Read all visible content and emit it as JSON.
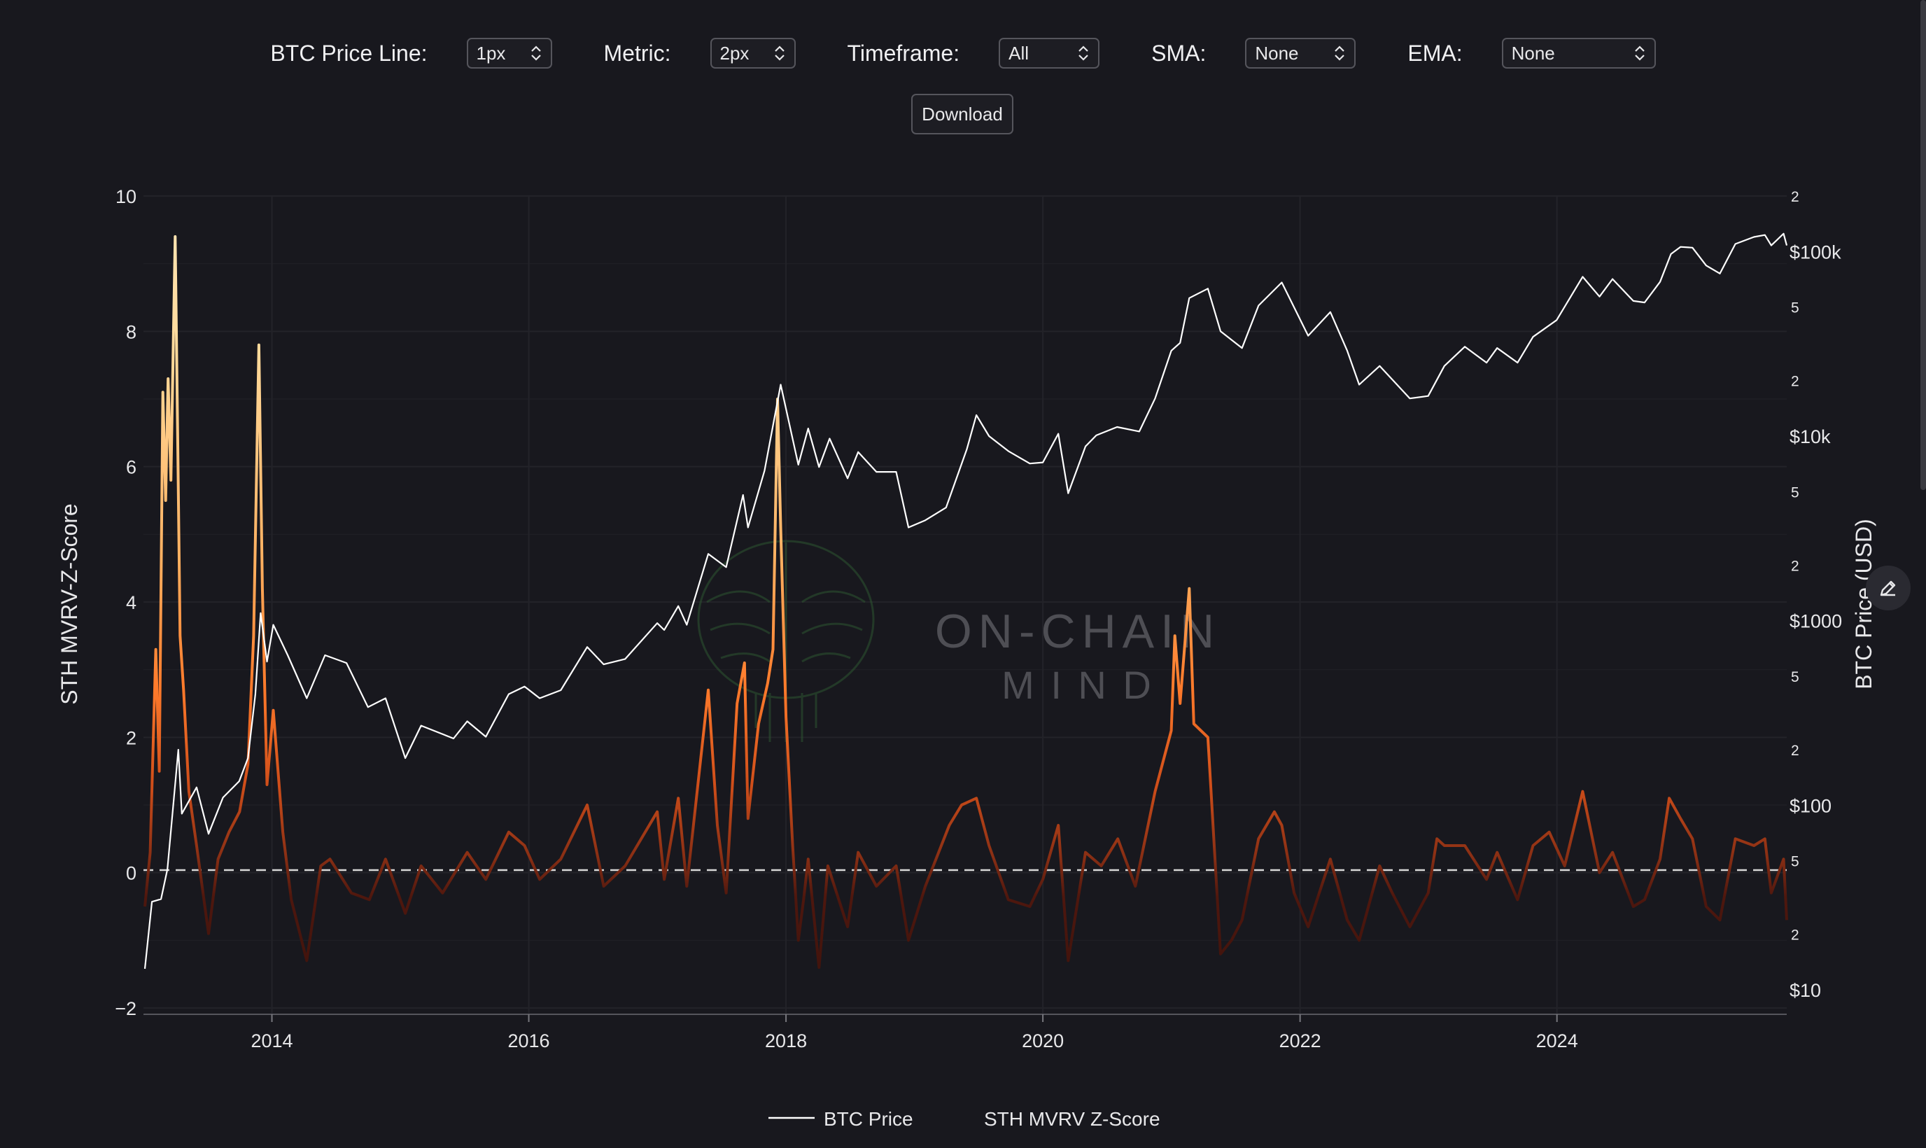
{
  "controls": [
    {
      "label": "BTC Price Line:",
      "value": "1px"
    },
    {
      "label": "Metric:",
      "value": "2px"
    },
    {
      "label": "Timeframe:",
      "value": "All"
    },
    {
      "label": "SMA:",
      "value": "None"
    },
    {
      "label": "EMA:",
      "value": "None"
    }
  ],
  "download_label": "Download",
  "watermark": {
    "line1": "ON-CHAIN",
    "line2": "M I N D"
  },
  "colors": {
    "background": "#18181e",
    "price": "#ffffff",
    "zscore_low": "#5a1a10",
    "zscore_mid": "#ff7a2a",
    "zscore_high": "#ffd28a",
    "zero_line": "#d8d8d8"
  },
  "icons": {
    "select": "chevron-updown-icon",
    "edit": "pencil-icon"
  },
  "chart_data": {
    "type": "line",
    "ylabel": "STH MVRV-Z-Score",
    "y2label": "BTC Price (USD)",
    "ylim": [
      -2,
      10
    ],
    "y2lim": [
      10,
      200000
    ],
    "y2_scale": "log",
    "y_ticks": [
      "10",
      "8",
      "6",
      "4",
      "2",
      "0",
      "−2"
    ],
    "y2_major_ticks": [
      {
        "value": 100000,
        "label": "$100k"
      },
      {
        "value": 10000,
        "label": "$10k"
      },
      {
        "value": 1000,
        "label": "$1000"
      },
      {
        "value": 100,
        "label": "$100"
      },
      {
        "value": 10,
        "label": "$10"
      }
    ],
    "y2_minor_ticks": [
      {
        "value": 200000,
        "label": "2"
      },
      {
        "value": 50000,
        "label": "5"
      },
      {
        "value": 20000,
        "label": "2"
      },
      {
        "value": 5000,
        "label": "5"
      },
      {
        "value": 2000,
        "label": "2"
      },
      {
        "value": 500,
        "label": "5"
      },
      {
        "value": 200,
        "label": "2"
      },
      {
        "value": 50,
        "label": "5"
      },
      {
        "value": 20,
        "label": "2"
      }
    ],
    "x_ticks": [
      "2014",
      "2016",
      "2018",
      "2020",
      "2022",
      "2024"
    ],
    "xlim": [
      "2013-01-01",
      "2025-10-15"
    ],
    "grid": true,
    "zero_reference_line": "dashed",
    "legend_position": "bottom-center",
    "series": [
      {
        "name": "BTC Price",
        "axis": "right",
        "points": [
          [
            "2013-01-05",
            13
          ],
          [
            "2013-01-25",
            30
          ],
          [
            "2013-02-20",
            31
          ],
          [
            "2013-03-10",
            45
          ],
          [
            "2013-04-10",
            200
          ],
          [
            "2013-04-20",
            90
          ],
          [
            "2013-06-01",
            125
          ],
          [
            "2013-07-05",
            70
          ],
          [
            "2013-08-15",
            110
          ],
          [
            "2013-09-30",
            135
          ],
          [
            "2013-10-25",
            180
          ],
          [
            "2013-11-15",
            400
          ],
          [
            "2013-11-30",
            1100
          ],
          [
            "2013-12-18",
            600
          ],
          [
            "2014-01-05",
            950
          ],
          [
            "2014-02-15",
            650
          ],
          [
            "2014-04-10",
            380
          ],
          [
            "2014-06-01",
            650
          ],
          [
            "2014-08-01",
            590
          ],
          [
            "2014-10-01",
            340
          ],
          [
            "2014-11-20",
            380
          ],
          [
            "2015-01-15",
            180
          ],
          [
            "2015-03-01",
            270
          ],
          [
            "2015-06-01",
            230
          ],
          [
            "2015-07-10",
            285
          ],
          [
            "2015-09-01",
            235
          ],
          [
            "2015-11-05",
            400
          ],
          [
            "2015-12-20",
            440
          ],
          [
            "2016-02-01",
            380
          ],
          [
            "2016-04-01",
            420
          ],
          [
            "2016-06-15",
            720
          ],
          [
            "2016-08-01",
            580
          ],
          [
            "2016-10-01",
            620
          ],
          [
            "2016-12-31",
            970
          ],
          [
            "2017-01-20",
            890
          ],
          [
            "2017-03-01",
            1200
          ],
          [
            "2017-03-25",
            950
          ],
          [
            "2017-05-25",
            2300
          ],
          [
            "2017-07-15",
            1950
          ],
          [
            "2017-09-01",
            4800
          ],
          [
            "2017-09-15",
            3200
          ],
          [
            "2017-11-01",
            6500
          ],
          [
            "2017-12-17",
            19000
          ],
          [
            "2018-02-05",
            7000
          ],
          [
            "2018-03-05",
            11000
          ],
          [
            "2018-04-05",
            6800
          ],
          [
            "2018-05-05",
            9700
          ],
          [
            "2018-06-25",
            5900
          ],
          [
            "2018-07-25",
            8200
          ],
          [
            "2018-09-15",
            6400
          ],
          [
            "2018-11-10",
            6400
          ],
          [
            "2018-12-15",
            3200
          ],
          [
            "2019-02-01",
            3500
          ],
          [
            "2019-04-01",
            4100
          ],
          [
            "2019-05-30",
            8500
          ],
          [
            "2019-06-26",
            13000
          ],
          [
            "2019-08-01",
            10000
          ],
          [
            "2019-09-25",
            8300
          ],
          [
            "2019-11-25",
            7100
          ],
          [
            "2020-01-01",
            7200
          ],
          [
            "2020-02-14",
            10300
          ],
          [
            "2020-03-13",
            4900
          ],
          [
            "2020-05-01",
            8800
          ],
          [
            "2020-06-01",
            10100
          ],
          [
            "2020-07-30",
            11200
          ],
          [
            "2020-10-01",
            10600
          ],
          [
            "2020-11-15",
            16000
          ],
          [
            "2020-12-31",
            29000
          ],
          [
            "2021-01-25",
            32000
          ],
          [
            "2021-02-20",
            56000
          ],
          [
            "2021-04-14",
            63000
          ],
          [
            "2021-05-20",
            37000
          ],
          [
            "2021-07-20",
            30000
          ],
          [
            "2021-09-05",
            51000
          ],
          [
            "2021-11-10",
            68000
          ],
          [
            "2022-01-24",
            35000
          ],
          [
            "2022-03-28",
            47000
          ],
          [
            "2022-05-15",
            29000
          ],
          [
            "2022-06-18",
            19000
          ],
          [
            "2022-08-15",
            24000
          ],
          [
            "2022-11-09",
            16000
          ],
          [
            "2022-12-31",
            16500
          ],
          [
            "2023-02-15",
            24000
          ],
          [
            "2023-04-14",
            30500
          ],
          [
            "2023-06-15",
            25000
          ],
          [
            "2023-07-15",
            30000
          ],
          [
            "2023-09-11",
            25000
          ],
          [
            "2023-10-25",
            34500
          ],
          [
            "2023-12-31",
            42500
          ],
          [
            "2024-03-14",
            73000
          ],
          [
            "2024-05-01",
            57000
          ],
          [
            "2024-06-07",
            71000
          ],
          [
            "2024-08-05",
            54000
          ],
          [
            "2024-09-06",
            53000
          ],
          [
            "2024-10-20",
            68500
          ],
          [
            "2024-11-20",
            97000
          ],
          [
            "2024-12-17",
            106000
          ],
          [
            "2025-01-20",
            105000
          ],
          [
            "2025-02-28",
            84000
          ],
          [
            "2025-04-08",
            76000
          ],
          [
            "2025-05-22",
            110000
          ],
          [
            "2025-07-14",
            120000
          ],
          [
            "2025-08-14",
            123000
          ],
          [
            "2025-09-01",
            108000
          ],
          [
            "2025-10-06",
            125000
          ],
          [
            "2025-10-15",
            108000
          ]
        ]
      },
      {
        "name": "STH MVRV Z-Score",
        "axis": "left",
        "points": [
          [
            "2013-01-05",
            -0.5
          ],
          [
            "2013-01-20",
            0.3
          ],
          [
            "2013-02-05",
            3.3
          ],
          [
            "2013-02-15",
            1.5
          ],
          [
            "2013-02-25",
            7.1
          ],
          [
            "2013-03-05",
            5.5
          ],
          [
            "2013-03-12",
            7.3
          ],
          [
            "2013-03-20",
            5.8
          ],
          [
            "2013-04-01",
            9.4
          ],
          [
            "2013-04-08",
            6.5
          ],
          [
            "2013-04-15",
            3.5
          ],
          [
            "2013-04-25",
            2.7
          ],
          [
            "2013-05-10",
            1.2
          ],
          [
            "2013-06-01",
            0.4
          ],
          [
            "2013-07-05",
            -0.9
          ],
          [
            "2013-08-01",
            0.2
          ],
          [
            "2013-09-01",
            0.6
          ],
          [
            "2013-10-01",
            0.9
          ],
          [
            "2013-10-25",
            1.6
          ],
          [
            "2013-11-10",
            3.5
          ],
          [
            "2013-11-25",
            7.8
          ],
          [
            "2013-12-05",
            4.2
          ],
          [
            "2013-12-18",
            1.3
          ],
          [
            "2014-01-05",
            2.4
          ],
          [
            "2014-02-01",
            0.6
          ],
          [
            "2014-02-25",
            -0.4
          ],
          [
            "2014-04-10",
            -1.3
          ],
          [
            "2014-05-20",
            0.1
          ],
          [
            "2014-06-15",
            0.2
          ],
          [
            "2014-08-15",
            -0.3
          ],
          [
            "2014-10-05",
            -0.4
          ],
          [
            "2014-11-20",
            0.2
          ],
          [
            "2015-01-15",
            -0.6
          ],
          [
            "2015-03-01",
            0.1
          ],
          [
            "2015-05-01",
            -0.3
          ],
          [
            "2015-07-10",
            0.3
          ],
          [
            "2015-09-01",
            -0.1
          ],
          [
            "2015-11-05",
            0.6
          ],
          [
            "2015-12-20",
            0.4
          ],
          [
            "2016-02-01",
            -0.1
          ],
          [
            "2016-04-01",
            0.2
          ],
          [
            "2016-06-15",
            1.0
          ],
          [
            "2016-08-01",
            -0.2
          ],
          [
            "2016-10-01",
            0.1
          ],
          [
            "2016-12-31",
            0.9
          ],
          [
            "2017-01-20",
            -0.1
          ],
          [
            "2017-03-01",
            1.1
          ],
          [
            "2017-03-25",
            -0.2
          ],
          [
            "2017-05-25",
            2.7
          ],
          [
            "2017-06-20",
            0.7
          ],
          [
            "2017-07-15",
            -0.3
          ],
          [
            "2017-08-15",
            2.5
          ],
          [
            "2017-09-05",
            3.1
          ],
          [
            "2017-09-15",
            0.8
          ],
          [
            "2017-10-15",
            2.2
          ],
          [
            "2017-11-10",
            2.8
          ],
          [
            "2017-11-25",
            3.3
          ],
          [
            "2017-12-08",
            7.0
          ],
          [
            "2017-12-17",
            5.1
          ],
          [
            "2018-01-01",
            2.3
          ],
          [
            "2018-01-20",
            0.4
          ],
          [
            "2018-02-05",
            -1.0
          ],
          [
            "2018-02-20",
            -0.4
          ],
          [
            "2018-03-05",
            0.2
          ],
          [
            "2018-04-05",
            -1.4
          ],
          [
            "2018-04-30",
            0.1
          ],
          [
            "2018-06-25",
            -0.8
          ],
          [
            "2018-07-25",
            0.3
          ],
          [
            "2018-09-15",
            -0.2
          ],
          [
            "2018-11-10",
            0.1
          ],
          [
            "2018-12-15",
            -1.0
          ],
          [
            "2019-02-01",
            -0.2
          ],
          [
            "2019-04-10",
            0.7
          ],
          [
            "2019-05-15",
            1.0
          ],
          [
            "2019-06-26",
            1.1
          ],
          [
            "2019-08-01",
            0.4
          ],
          [
            "2019-09-25",
            -0.4
          ],
          [
            "2019-11-25",
            -0.5
          ],
          [
            "2020-01-01",
            -0.1
          ],
          [
            "2020-02-14",
            0.7
          ],
          [
            "2020-03-13",
            -1.3
          ],
          [
            "2020-05-01",
            0.3
          ],
          [
            "2020-06-15",
            0.1
          ],
          [
            "2020-08-01",
            0.5
          ],
          [
            "2020-09-20",
            -0.2
          ],
          [
            "2020-11-15",
            1.2
          ],
          [
            "2020-12-31",
            2.1
          ],
          [
            "2021-01-10",
            3.5
          ],
          [
            "2021-01-25",
            2.5
          ],
          [
            "2021-02-20",
            4.2
          ],
          [
            "2021-03-05",
            2.2
          ],
          [
            "2021-04-14",
            2.0
          ],
          [
            "2021-05-20",
            -1.2
          ],
          [
            "2021-06-20",
            -1.0
          ],
          [
            "2021-07-20",
            -0.7
          ],
          [
            "2021-09-05",
            0.5
          ],
          [
            "2021-10-20",
            0.9
          ],
          [
            "2021-11-10",
            0.7
          ],
          [
            "2021-12-15",
            -0.3
          ],
          [
            "2022-01-24",
            -0.8
          ],
          [
            "2022-03-28",
            0.2
          ],
          [
            "2022-05-15",
            -0.7
          ],
          [
            "2022-06-18",
            -1.0
          ],
          [
            "2022-08-15",
            0.1
          ],
          [
            "2022-09-20",
            -0.3
          ],
          [
            "2022-11-09",
            -0.8
          ],
          [
            "2022-12-31",
            -0.3
          ],
          [
            "2023-01-25",
            0.5
          ],
          [
            "2023-02-15",
            0.4
          ],
          [
            "2023-04-14",
            0.4
          ],
          [
            "2023-06-15",
            -0.1
          ],
          [
            "2023-07-15",
            0.3
          ],
          [
            "2023-09-11",
            -0.4
          ],
          [
            "2023-10-25",
            0.4
          ],
          [
            "2023-12-10",
            0.6
          ],
          [
            "2024-01-23",
            0.1
          ],
          [
            "2024-03-14",
            1.2
          ],
          [
            "2024-05-01",
            0.0
          ],
          [
            "2024-06-07",
            0.3
          ],
          [
            "2024-08-05",
            -0.5
          ],
          [
            "2024-09-06",
            -0.4
          ],
          [
            "2024-10-20",
            0.2
          ],
          [
            "2024-11-15",
            1.1
          ],
          [
            "2024-12-17",
            0.8
          ],
          [
            "2025-01-20",
            0.5
          ],
          [
            "2025-02-28",
            -0.5
          ],
          [
            "2025-04-08",
            -0.7
          ],
          [
            "2025-05-22",
            0.5
          ],
          [
            "2025-07-14",
            0.4
          ],
          [
            "2025-08-14",
            0.5
          ],
          [
            "2025-09-01",
            -0.3
          ],
          [
            "2025-10-06",
            0.2
          ],
          [
            "2025-10-15",
            -0.7
          ]
        ]
      }
    ]
  }
}
